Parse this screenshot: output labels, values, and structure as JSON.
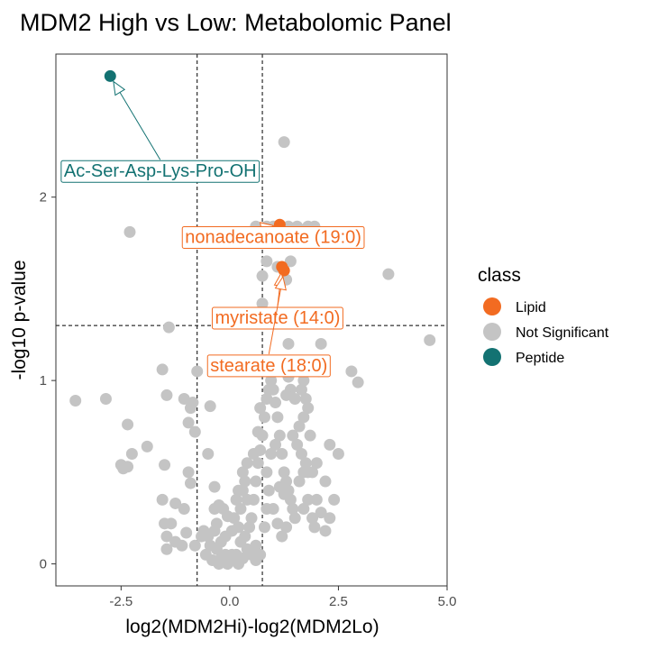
{
  "chart_data": {
    "type": "scatter",
    "title": "MDM2 High vs Low: Metabolomic Panel",
    "xlabel": "log2(MDM2Hi)-log2(MDM2Lo)",
    "ylabel": "-log10 p-value",
    "xlim": [
      -4.0,
      5.0
    ],
    "ylim": [
      -0.12,
      2.78
    ],
    "xticks": [
      -2.5,
      0.0,
      2.5,
      5.0
    ],
    "xtick_labels": [
      "-2.5",
      "0.0",
      "2.5",
      "5.0"
    ],
    "yticks": [
      0,
      1,
      2
    ],
    "ytick_labels": [
      "0",
      "1",
      "2"
    ],
    "thresholds": {
      "x": [
        -0.75,
        0.75
      ],
      "y": [
        1.3
      ]
    },
    "legend": {
      "title": "class",
      "position": "right",
      "entries": [
        {
          "label": "Lipid",
          "color": "#f26b21"
        },
        {
          "label": "Not Significant",
          "color": "#c4c4c4"
        },
        {
          "label": "Peptide",
          "color": "#137272"
        }
      ]
    },
    "series": [
      {
        "name": "Lipid",
        "color": "#f26b21",
        "points": [
          [
            1.15,
            1.85
          ],
          [
            1.2,
            1.62
          ],
          [
            1.25,
            1.6
          ]
        ]
      },
      {
        "name": "Peptide",
        "color": "#137272",
        "points": [
          [
            -2.75,
            2.66
          ]
        ]
      },
      {
        "name": "Not Significant",
        "color": "#c4c4c4",
        "points": [
          [
            1.25,
            2.3
          ],
          [
            -2.3,
            1.81
          ],
          [
            3.65,
            1.58
          ],
          [
            4.6,
            1.22
          ],
          [
            -1.4,
            1.29
          ],
          [
            -3.55,
            0.89
          ],
          [
            -2.85,
            0.9
          ],
          [
            0.6,
            1.84
          ],
          [
            0.85,
            1.84
          ],
          [
            1.0,
            1.84
          ],
          [
            1.35,
            1.84
          ],
          [
            1.55,
            1.84
          ],
          [
            1.8,
            1.84
          ],
          [
            1.95,
            1.84
          ],
          [
            1.5,
            1.8
          ],
          [
            1.05,
            1.8
          ],
          [
            0.85,
            1.65
          ],
          [
            1.4,
            1.65
          ],
          [
            1.1,
            1.62
          ],
          [
            0.75,
            1.57
          ],
          [
            1.3,
            1.55
          ],
          [
            0.75,
            1.42
          ],
          [
            1.3,
            1.35
          ],
          [
            1.5,
            1.34
          ],
          [
            1.35,
            1.2
          ],
          [
            2.1,
            1.2
          ],
          [
            1.6,
            1.1
          ],
          [
            2.05,
            1.05
          ],
          [
            2.8,
            1.05
          ],
          [
            2.95,
            0.99
          ],
          [
            1.35,
            1.02
          ],
          [
            1.7,
            1.0
          ],
          [
            -1.55,
            1.06
          ],
          [
            -0.75,
            1.05
          ],
          [
            -1.45,
            0.92
          ],
          [
            -1.05,
            0.9
          ],
          [
            -0.85,
            0.88
          ],
          [
            -0.9,
            0.85
          ],
          [
            -0.45,
            0.86
          ],
          [
            -2.35,
            0.76
          ],
          [
            -0.95,
            0.77
          ],
          [
            -1.9,
            0.64
          ],
          [
            -0.8,
            0.72
          ],
          [
            -0.5,
            0.6
          ],
          [
            -2.25,
            0.6
          ],
          [
            -2.5,
            0.54
          ],
          [
            -2.45,
            0.52
          ],
          [
            -2.35,
            0.53
          ],
          [
            -1.5,
            0.54
          ],
          [
            -1.55,
            0.35
          ],
          [
            -0.95,
            0.5
          ],
          [
            -0.9,
            0.44
          ],
          [
            -0.35,
            0.42
          ],
          [
            -1.25,
            0.33
          ],
          [
            -1.5,
            0.22
          ],
          [
            -1.45,
            0.15
          ],
          [
            -1.45,
            0.08
          ],
          [
            -1.35,
            0.22
          ],
          [
            -1.0,
            0.17
          ],
          [
            -1.05,
            0.3
          ],
          [
            -0.35,
            0.3
          ],
          [
            -0.25,
            0.32
          ],
          [
            -0.15,
            0.3
          ],
          [
            -0.05,
            0.26
          ],
          [
            -1.25,
            0.12
          ],
          [
            -1.1,
            0.1
          ],
          [
            -0.8,
            0.1
          ],
          [
            -0.65,
            0.15
          ],
          [
            -0.55,
            0.05
          ],
          [
            -0.45,
            0.1
          ],
          [
            -0.4,
            0.02
          ],
          [
            -0.5,
            0.15
          ],
          [
            -0.3,
            0.08
          ],
          [
            -0.25,
            0.0
          ],
          [
            -0.2,
            0.03
          ],
          [
            -0.15,
            0.02
          ],
          [
            -0.1,
            0.05
          ],
          [
            -0.05,
            0.0
          ],
          [
            0.0,
            0.03
          ],
          [
            0.05,
            0.05
          ],
          [
            0.1,
            0.02
          ],
          [
            0.15,
            0.05
          ],
          [
            0.2,
            0.0
          ],
          [
            0.3,
            0.03
          ],
          [
            -0.6,
            0.18
          ],
          [
            -0.35,
            0.18
          ],
          [
            -0.2,
            0.12
          ],
          [
            0.25,
            0.12
          ],
          [
            0.35,
            0.15
          ],
          [
            0.4,
            0.08
          ],
          [
            0.5,
            0.05
          ],
          [
            0.6,
            0.1
          ],
          [
            0.45,
            0.2
          ],
          [
            0.5,
            0.25
          ],
          [
            0.55,
            0.35
          ],
          [
            0.6,
            0.45
          ],
          [
            0.65,
            0.55
          ],
          [
            0.7,
            0.62
          ],
          [
            0.75,
            0.7
          ],
          [
            0.8,
            0.8
          ],
          [
            0.85,
            0.9
          ],
          [
            0.9,
            0.95
          ],
          [
            0.7,
            0.85
          ],
          [
            0.65,
            0.72
          ],
          [
            0.3,
            0.5
          ],
          [
            0.35,
            0.45
          ],
          [
            0.4,
            0.55
          ],
          [
            0.15,
            0.35
          ],
          [
            0.2,
            0.4
          ],
          [
            0.1,
            0.25
          ],
          [
            0.05,
            0.18
          ],
          [
            0.25,
            0.3
          ],
          [
            0.3,
            0.4
          ],
          [
            0.4,
            0.35
          ],
          [
            0.55,
            0.6
          ],
          [
            0.95,
            1.0
          ],
          [
            1.0,
            0.95
          ],
          [
            1.05,
            0.88
          ],
          [
            1.1,
            0.8
          ],
          [
            1.15,
            0.7
          ],
          [
            1.2,
            0.6
          ],
          [
            1.25,
            0.5
          ],
          [
            1.3,
            0.45
          ],
          [
            1.35,
            0.4
          ],
          [
            1.4,
            0.35
          ],
          [
            1.45,
            0.3
          ],
          [
            1.5,
            0.25
          ],
          [
            1.3,
            0.2
          ],
          [
            1.2,
            0.15
          ],
          [
            1.1,
            0.22
          ],
          [
            1.0,
            0.3
          ],
          [
            0.9,
            0.4
          ],
          [
            0.85,
            0.5
          ],
          [
            0.95,
            0.6
          ],
          [
            1.05,
            0.65
          ],
          [
            1.15,
            0.42
          ],
          [
            1.25,
            0.38
          ],
          [
            0.85,
            0.3
          ],
          [
            0.8,
            0.2
          ],
          [
            1.6,
            0.45
          ],
          [
            1.7,
            0.5
          ],
          [
            1.75,
            0.55
          ],
          [
            1.8,
            0.5
          ],
          [
            1.9,
            0.5
          ],
          [
            2.0,
            0.55
          ],
          [
            1.65,
            0.6
          ],
          [
            1.55,
            0.65
          ],
          [
            1.45,
            0.7
          ],
          [
            1.6,
            0.75
          ],
          [
            1.7,
            0.8
          ],
          [
            1.8,
            0.85
          ],
          [
            1.5,
            0.9
          ],
          [
            1.4,
            0.95
          ],
          [
            1.3,
            0.92
          ],
          [
            1.65,
            0.95
          ],
          [
            1.75,
            0.9
          ],
          [
            1.85,
            0.7
          ],
          [
            2.3,
            0.65
          ],
          [
            2.5,
            0.6
          ],
          [
            2.2,
            0.45
          ],
          [
            2.4,
            0.35
          ],
          [
            2.3,
            0.25
          ],
          [
            2.0,
            0.35
          ],
          [
            1.95,
            0.2
          ],
          [
            1.7,
            0.3
          ],
          [
            1.8,
            0.35
          ],
          [
            1.9,
            0.25
          ],
          [
            2.1,
            0.28
          ],
          [
            2.2,
            0.18
          ],
          [
            0.6,
            0.02
          ],
          [
            0.7,
            0.05
          ],
          [
            -0.3,
            0.22
          ],
          [
            -0.1,
            0.15
          ],
          [
            0.2,
            0.2
          ]
        ]
      }
    ],
    "annotations": [
      {
        "label": "Ac-Ser-Asp-Lys-Pro-OH",
        "color": "#137272",
        "text_at": [
          -1.6,
          2.14
        ],
        "point": [
          -2.75,
          2.66
        ]
      },
      {
        "label": "nonadecanoate (19:0)",
        "color": "#f26b21",
        "text_at": [
          1.0,
          1.78
        ],
        "point": [
          1.15,
          1.85
        ]
      },
      {
        "label": "myristate (14:0)",
        "color": "#f26b21",
        "text_at": [
          1.1,
          1.34
        ],
        "point": [
          1.2,
          1.62
        ]
      },
      {
        "label": "stearate (18:0)",
        "color": "#f26b21",
        "text_at": [
          0.9,
          1.08
        ],
        "point": [
          1.25,
          1.6
        ]
      }
    ]
  }
}
